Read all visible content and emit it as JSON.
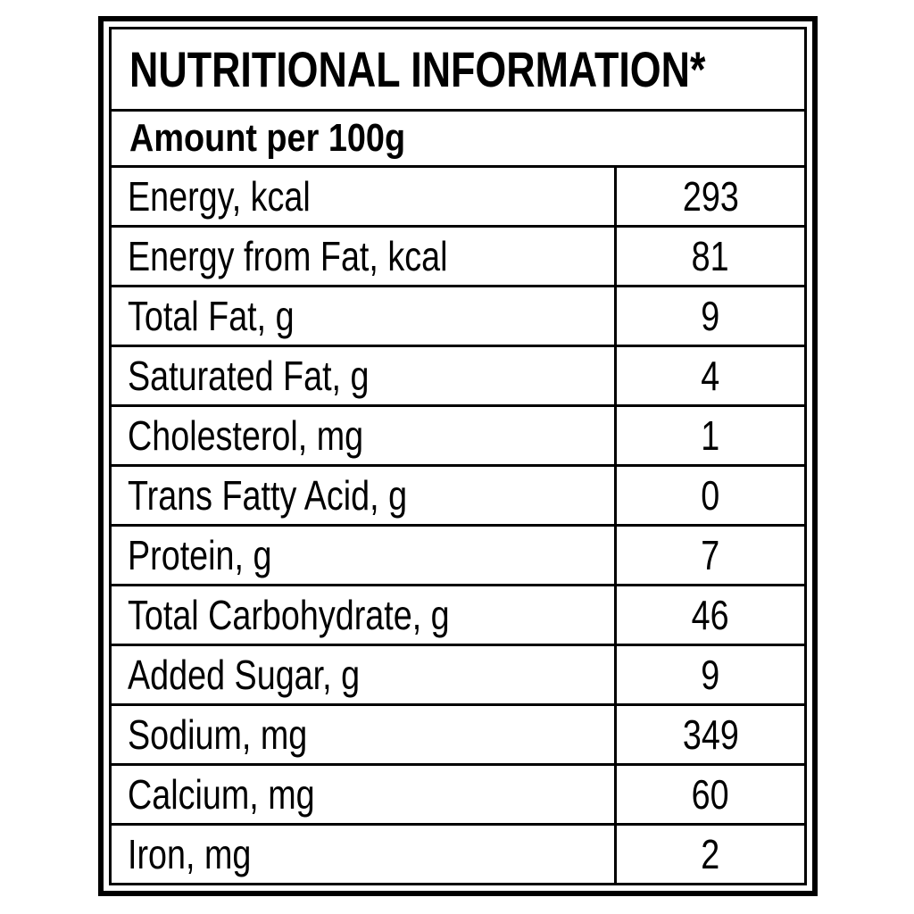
{
  "panel": {
    "title": "NUTRITIONAL INFORMATION*",
    "subtitle": "Amount per 100g"
  },
  "nutrients": [
    {
      "label": "Energy, kcal",
      "value": "293"
    },
    {
      "label": "Energy from Fat, kcal",
      "value": "81"
    },
    {
      "label": "Total Fat, g",
      "value": "9"
    },
    {
      "label": "Saturated Fat, g",
      "value": "4"
    },
    {
      "label": "Cholesterol, mg",
      "value": "1"
    },
    {
      "label": "Trans Fatty Acid, g",
      "value": "0"
    },
    {
      "label": "Protein, g",
      "value": "7"
    },
    {
      "label": "Total Carbohydrate, g",
      "value": "46"
    },
    {
      "label": "Added Sugar, g",
      "value": "9"
    },
    {
      "label": "Sodium, mg",
      "value": "349"
    },
    {
      "label": "Calcium, mg",
      "value": "60"
    },
    {
      "label": "Iron, mg",
      "value": "2"
    }
  ]
}
